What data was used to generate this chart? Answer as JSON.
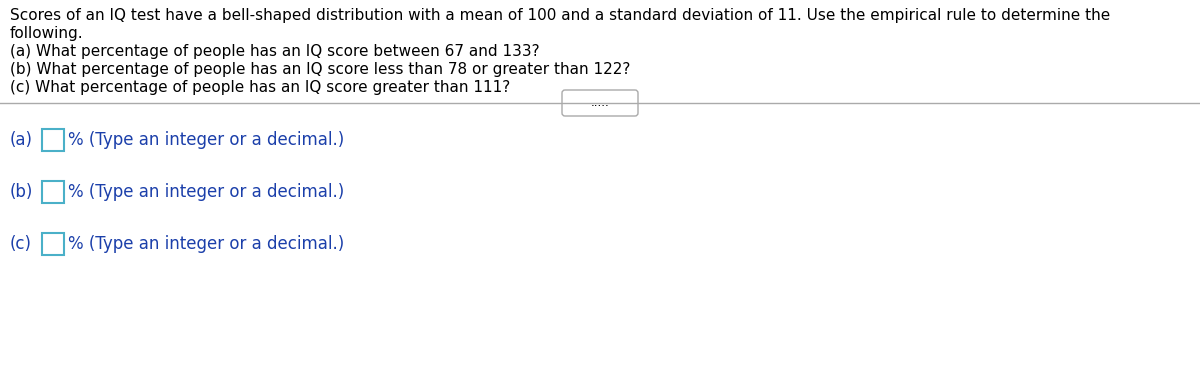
{
  "background_color": "#ffffff",
  "title_text_line1": "Scores of an IQ test have a bell-shaped distribution with a mean of 100 and a standard deviation of 11. Use the empirical rule to determine the",
  "title_text_line2": "following.",
  "question_a": "(a) What percentage of people has an IQ score between 67 and 133?",
  "question_b": "(b) What percentage of people has an IQ score less than 78 or greater than 122?",
  "question_c": "(c) What percentage of people has an IQ score greater than 111?",
  "divider_dots": ".....",
  "answer_a_label": "(a)",
  "answer_a_hint": "% (Type an integer or a decimal.)",
  "answer_b_label": "(b)",
  "answer_b_hint": "% (Type an integer or a decimal.)",
  "answer_c_label": "(c)",
  "answer_c_hint": "% (Type an integer or a decimal.)",
  "text_color": "#000000",
  "answer_text_color": "#1b3faa",
  "box_edge_color": "#4ab0c8",
  "divider_color": "#aaaaaa",
  "dots_border_color": "#aaaaaa",
  "font_size_main": 11.0,
  "font_size_answer": 12.0,
  "fig_width": 12.0,
  "fig_height": 3.76
}
